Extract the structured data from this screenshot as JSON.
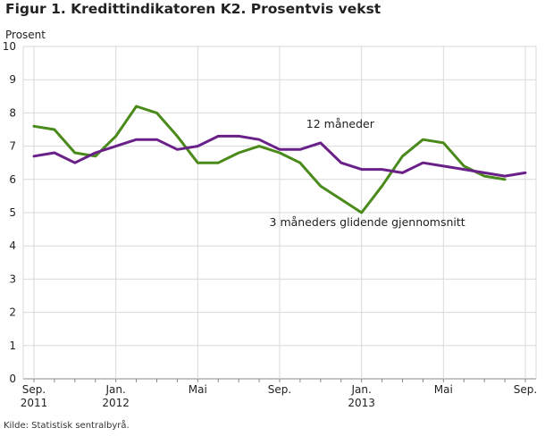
{
  "figure": {
    "title": "Figur 1. Kredittindikatoren K2. Prosentvis vekst",
    "source": "Kilde: Statistisk sentralbyrå."
  },
  "chart_data": {
    "type": "line",
    "ylabel": "Prosent",
    "ylim": [
      0,
      10
    ],
    "yticks": [
      "0",
      "1",
      "2",
      "3",
      "4",
      "5",
      "6",
      "7",
      "8",
      "9",
      "10"
    ],
    "xlim": [
      0,
      24
    ],
    "x_tick_labels": [
      {
        "x": 0,
        "line1": "Sep.",
        "line2": "2011"
      },
      {
        "x": 4,
        "line1": "Jan.",
        "line2": "2012"
      },
      {
        "x": 8,
        "line1": "Mai",
        "line2": ""
      },
      {
        "x": 12,
        "line1": "Sep.",
        "line2": ""
      },
      {
        "x": 16,
        "line1": "Jan.",
        "line2": "2013"
      },
      {
        "x": 20,
        "line1": "Mai",
        "line2": ""
      },
      {
        "x": 24,
        "line1": "Sep.",
        "line2": ""
      }
    ],
    "grid": true,
    "months": [
      "Sep. 2011",
      "Okt. 2011",
      "Nov. 2011",
      "Des. 2011",
      "Jan. 2012",
      "Feb. 2012",
      "Mar. 2012",
      "Apr. 2012",
      "Mai 2012",
      "Jun. 2012",
      "Jul. 2012",
      "Aug. 2012",
      "Sep. 2012",
      "Okt. 2012",
      "Nov. 2012",
      "Des. 2012",
      "Jan. 2013",
      "Feb. 2013",
      "Mar. 2013",
      "Apr. 2013",
      "Mai 2013",
      "Jun. 2013",
      "Jul. 2013",
      "Aug. 2013",
      "Sep. 2013"
    ],
    "series": [
      {
        "name": "12 måneder",
        "color": "#6a2089",
        "values": [
          6.7,
          6.8,
          6.5,
          6.8,
          7.0,
          7.2,
          7.2,
          6.9,
          7.0,
          7.3,
          7.3,
          7.2,
          6.9,
          6.9,
          7.1,
          6.5,
          6.3,
          6.3,
          6.2,
          6.5,
          6.4,
          6.3,
          6.2,
          6.1,
          6.2
        ]
      },
      {
        "name": "3 måneders glidende gjennomsnitt",
        "color": "#4a8a1a",
        "values": [
          7.6,
          7.5,
          6.8,
          6.7,
          7.3,
          8.2,
          8.0,
          7.3,
          6.5,
          6.5,
          6.8,
          7.0,
          6.8,
          6.5,
          5.8,
          5.4,
          5.0,
          5.8,
          6.7,
          7.2,
          7.1,
          6.4,
          6.1,
          6.0,
          null
        ]
      }
    ],
    "annotations": [
      {
        "text": "12 måneder",
        "series": 0
      },
      {
        "text": "3 måneders glidende gjennomsnitt",
        "series": 1
      }
    ]
  }
}
